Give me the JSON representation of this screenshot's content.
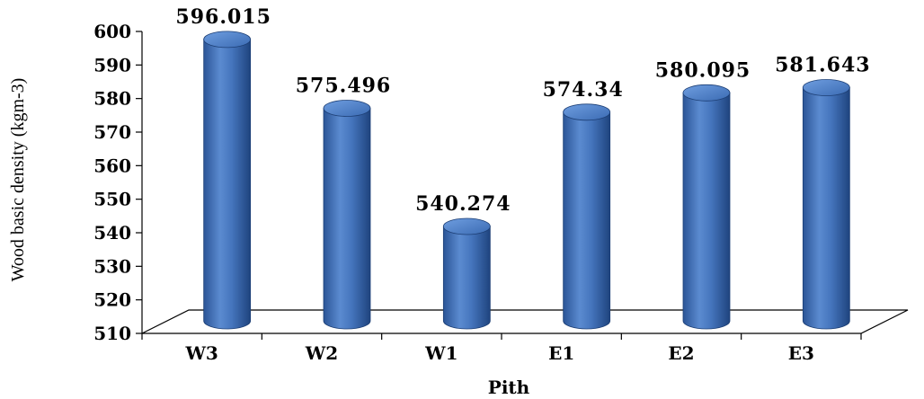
{
  "chart_data": {
    "type": "bar",
    "categories": [
      "W3",
      "W2",
      "W1",
      "E1",
      "E2",
      "E3"
    ],
    "values": [
      596.015,
      575.496,
      540.274,
      574.34,
      580.095,
      581.643
    ],
    "value_labels": [
      "596.015",
      "575.496",
      "540.274",
      "574.34",
      "580.095",
      "581.643"
    ],
    "xlabel": "Pith",
    "ylabel": "Wood basic density (kgm-3)",
    "ylim": [
      510,
      600
    ],
    "yticks": [
      "510",
      "520",
      "530",
      "540",
      "550",
      "560",
      "570",
      "580",
      "590",
      "600"
    ],
    "grid": false,
    "legend": "none",
    "style": "3d-cylinder",
    "bar_color": "#3F6FB6"
  }
}
